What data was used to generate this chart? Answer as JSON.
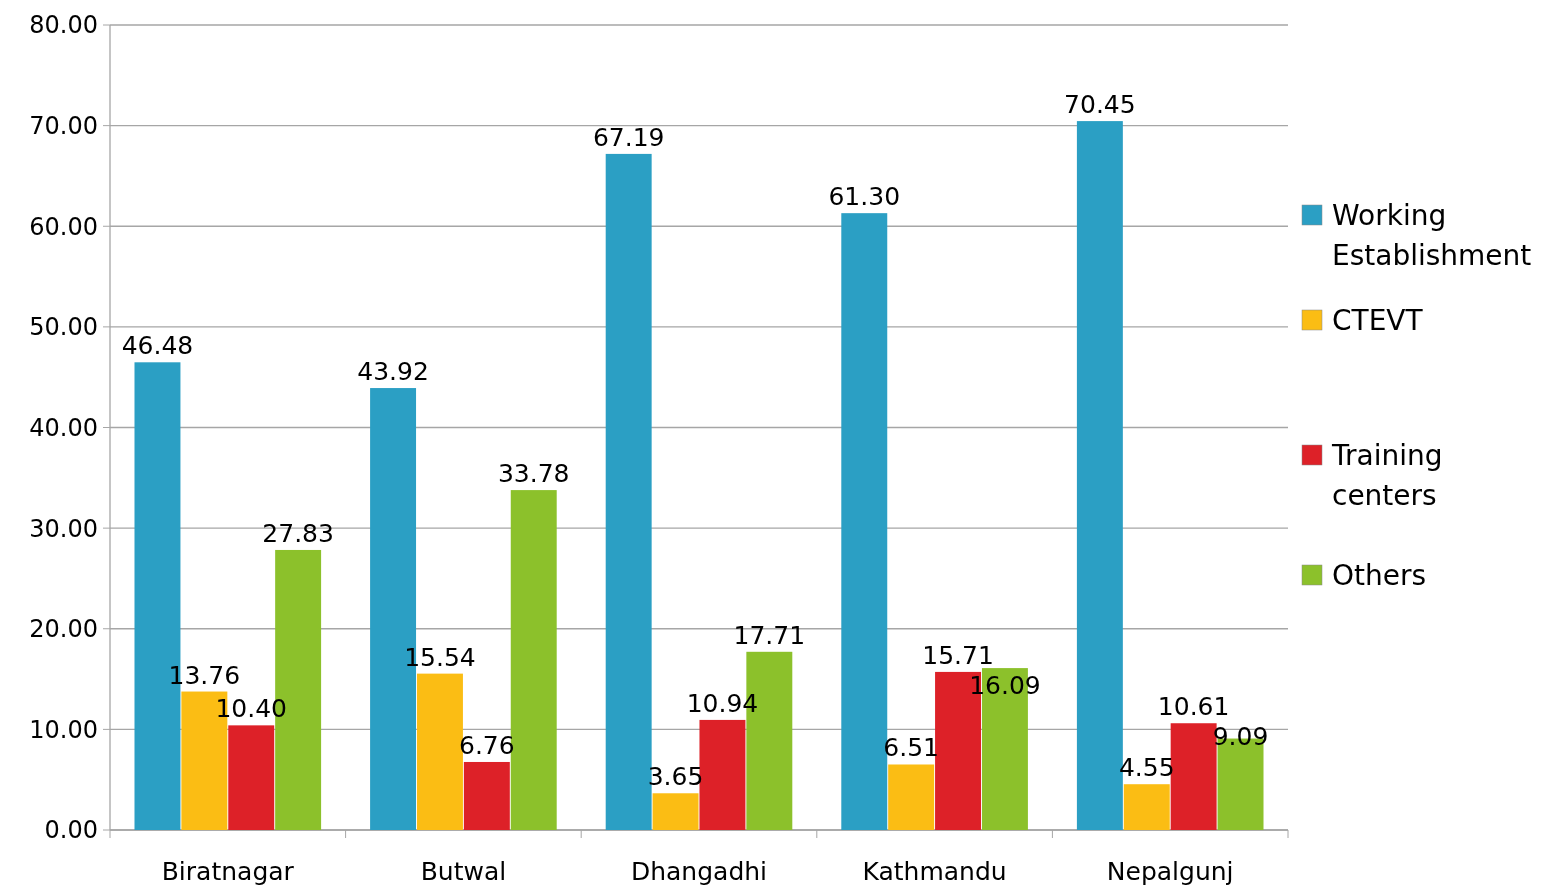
{
  "chart_data": {
    "type": "bar",
    "categories": [
      "Biratnagar",
      "Butwal",
      "Dhangadhi",
      "Kathmandu",
      "Nepalgunj"
    ],
    "series": [
      {
        "name": "Working Establishment",
        "color": "#2b9fc4",
        "values": [
          46.48,
          43.92,
          67.19,
          61.3,
          70.45
        ],
        "value_labels": [
          "46.48",
          "43.92",
          "67.19",
          "61.30",
          "70.45"
        ]
      },
      {
        "name": "CTEVT",
        "color": "#fbbd14",
        "values": [
          13.76,
          15.54,
          3.65,
          6.51,
          4.55
        ],
        "value_labels": [
          "13.76",
          "15.54",
          "3.65",
          "6.51",
          "4.55"
        ]
      },
      {
        "name": "Training centers",
        "color": "#dd2128",
        "values": [
          10.4,
          6.76,
          10.94,
          15.71,
          10.61
        ],
        "value_labels": [
          "10.40",
          "6.76",
          "10.94",
          "15.71",
          "10.61"
        ]
      },
      {
        "name": "Others",
        "color": "#8cc12b",
        "values": [
          27.83,
          33.78,
          17.71,
          16.09,
          9.09
        ],
        "value_labels": [
          "27.83",
          "33.78",
          "17.71",
          "16.09",
          "9.09"
        ]
      }
    ],
    "ylim": [
      0,
      80
    ],
    "yticks": [
      {
        "value": 0,
        "label": "0.00"
      },
      {
        "value": 10,
        "label": "10.00"
      },
      {
        "value": 20,
        "label": "20.00"
      },
      {
        "value": 30,
        "label": "30.00"
      },
      {
        "value": 40,
        "label": "40.00"
      },
      {
        "value": 50,
        "label": "50.00"
      },
      {
        "value": 60,
        "label": "60.00"
      },
      {
        "value": 70,
        "label": "70.00"
      },
      {
        "value": 80,
        "label": "80.00"
      }
    ],
    "grid": "y",
    "legend": "right"
  }
}
